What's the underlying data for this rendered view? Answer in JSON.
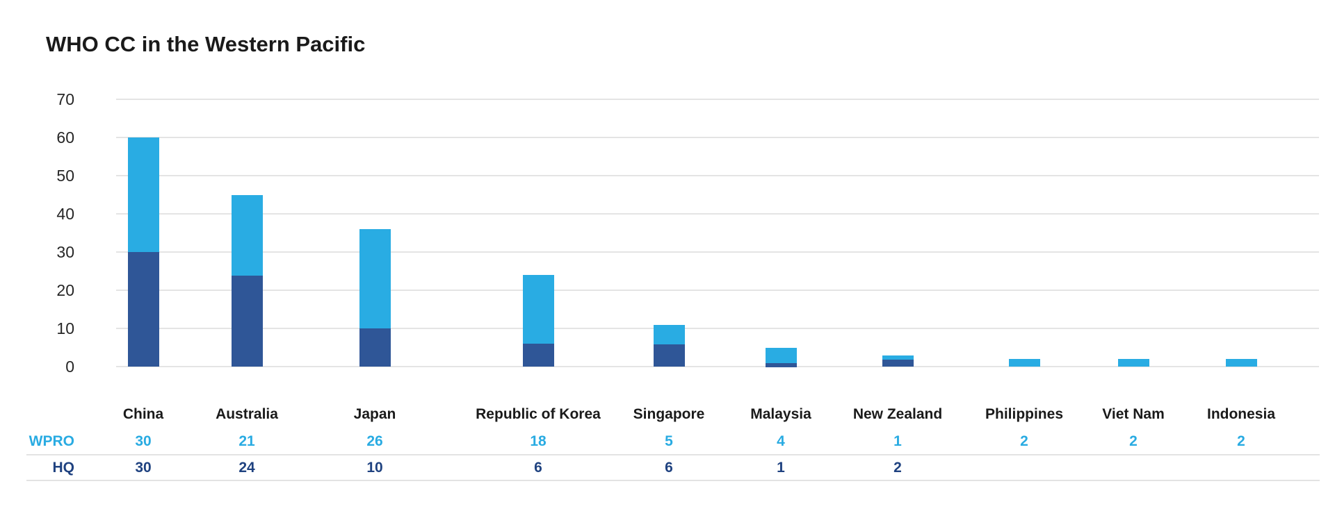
{
  "title": "WHO CC in the Western Pacific",
  "colors": {
    "wpro_bar": "#29ACE3",
    "hq_bar": "#2F5697",
    "wpro_text": "#29ABE2",
    "hq_text": "#1F4280",
    "axis_text": "#262626",
    "label_text": "#1A1A1A",
    "gridline": "#E4E4E4",
    "divider": "#E3E3E3",
    "background": "#FFFFFF"
  },
  "chart_data": {
    "type": "bar",
    "stacked": true,
    "title": "WHO CC in the Western Pacific",
    "categories": [
      "China",
      "Australia",
      "Japan",
      "Republic of Korea",
      "Singapore",
      "Malaysia",
      "New Zealand",
      "Philippines",
      "Viet Nam",
      "Indonesia"
    ],
    "series": [
      {
        "name": "HQ",
        "stack_position": "bottom",
        "color": "#2F5697",
        "values": [
          30,
          24,
          10,
          6,
          6,
          1,
          2,
          null,
          null,
          null
        ]
      },
      {
        "name": "WPRO",
        "stack_position": "top",
        "color": "#29ACE3",
        "values": [
          30,
          21,
          26,
          18,
          5,
          4,
          1,
          2,
          2,
          2
        ]
      }
    ],
    "totals": [
      60,
      45,
      36,
      24,
      11,
      5,
      3,
      2,
      2,
      2
    ],
    "xlabel": "",
    "ylabel": "",
    "ylim": [
      0,
      70
    ],
    "yticks": [
      0,
      10,
      20,
      30,
      40,
      50,
      60,
      70
    ],
    "grid": true,
    "legend_position": "data-table-below-chart"
  },
  "data_table": {
    "rows": [
      {
        "label": "WPRO",
        "values": [
          "30",
          "21",
          "26",
          "18",
          "5",
          "4",
          "1",
          "2",
          "2",
          "2"
        ]
      },
      {
        "label": "HQ",
        "values": [
          "30",
          "24",
          "10",
          "6",
          "6",
          "1",
          "2",
          "",
          "",
          ""
        ]
      }
    ]
  }
}
